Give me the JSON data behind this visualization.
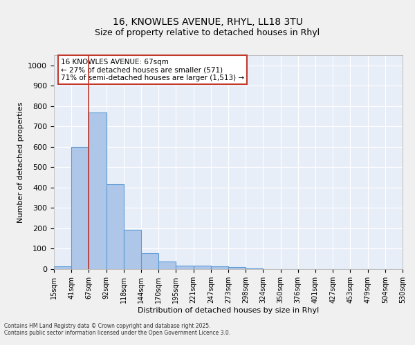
{
  "title1": "16, KNOWLES AVENUE, RHYL, LL18 3TU",
  "title2": "Size of property relative to detached houses in Rhyl",
  "xlabel": "Distribution of detached houses by size in Rhyl",
  "ylabel": "Number of detached properties",
  "bin_labels": [
    "15sqm",
    "41sqm",
    "67sqm",
    "92sqm",
    "118sqm",
    "144sqm",
    "170sqm",
    "195sqm",
    "221sqm",
    "247sqm",
    "273sqm",
    "298sqm",
    "324sqm",
    "350sqm",
    "376sqm",
    "401sqm",
    "427sqm",
    "453sqm",
    "479sqm",
    "504sqm",
    "530sqm"
  ],
  "bar_values": [
    15,
    600,
    770,
    415,
    193,
    77,
    38,
    17,
    17,
    13,
    10,
    5,
    0,
    0,
    0,
    0,
    0,
    0,
    0,
    0
  ],
  "bar_color": "#aec6e8",
  "bar_edge_color": "#5b9bd5",
  "property_line_color": "#c0392b",
  "property_line_label_idx": 2,
  "annotation_title": "16 KNOWLES AVENUE: 67sqm",
  "annotation_line2": "← 27% of detached houses are smaller (571)",
  "annotation_line3": "71% of semi-detached houses are larger (1,513) →",
  "annotation_box_color": "#ffffff",
  "annotation_box_edge": "#c0392b",
  "ylim": [
    0,
    1050
  ],
  "yticks": [
    0,
    100,
    200,
    300,
    400,
    500,
    600,
    700,
    800,
    900,
    1000
  ],
  "footer1": "Contains HM Land Registry data © Crown copyright and database right 2025.",
  "footer2": "Contains public sector information licensed under the Open Government Licence 3.0.",
  "plot_bg_color": "#e8eef8",
  "fig_bg_color": "#f0f0f0"
}
